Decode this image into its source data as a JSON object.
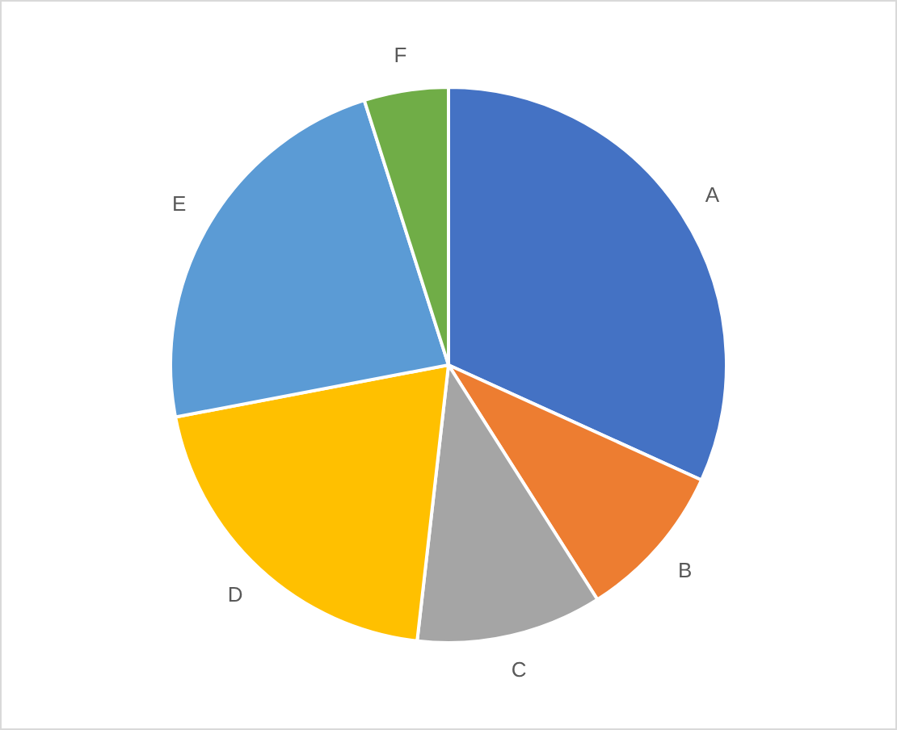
{
  "chart_data": {
    "type": "pie",
    "categories": [
      "A",
      "B",
      "C",
      "D",
      "E",
      "F"
    ],
    "values": [
      31.8,
      9.2,
      10.8,
      20.2,
      23.1,
      4.9
    ],
    "colors": [
      "#4472c4",
      "#ed7d31",
      "#a5a5a5",
      "#ffc000",
      "#5b9bd5",
      "#70ad47"
    ]
  }
}
